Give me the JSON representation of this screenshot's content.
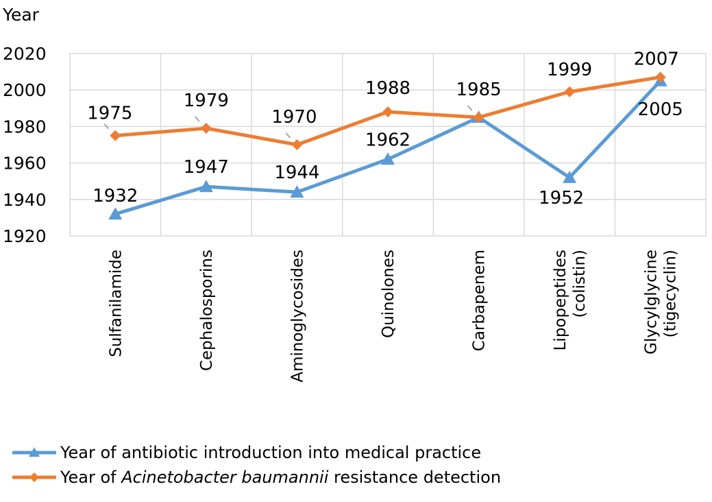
{
  "chart_data": {
    "type": "line",
    "ylabel": "Year",
    "ylim": [
      1920,
      2020
    ],
    "yticks": [
      "1920",
      "1940",
      "1960",
      "1980",
      "2000",
      "2020"
    ],
    "grid": true,
    "legend_position": "bottom",
    "categories": [
      [
        "Sulfanilamide"
      ],
      [
        "Cephalosporins"
      ],
      [
        "Aminoglycosides"
      ],
      [
        "Quinolones"
      ],
      [
        "Carbapenem"
      ],
      [
        "Lipopeptides",
        "(colistin)"
      ],
      [
        "Glycylglycine",
        "(tigecyclin)"
      ]
    ],
    "series": [
      {
        "name": "Year of antibiotic introduction into medical practice",
        "color": "#5B9BD5",
        "marker": "triangle",
        "values": [
          1932,
          1947,
          1944,
          1962,
          1985,
          1952,
          2005
        ],
        "labels": [
          "1932",
          "1947",
          "1944",
          "1962",
          "",
          "1952",
          "2005"
        ]
      },
      {
        "name_parts": [
          "Year of ",
          "Acinetobacter baumannii",
          " resistance detection"
        ],
        "color": "#ED7D31",
        "marker": "diamond",
        "values": [
          1975,
          1979,
          1970,
          1988,
          1985,
          1999,
          2007
        ],
        "labels": [
          "1975",
          "1979",
          "1970",
          "1988",
          "1985",
          "1999",
          "2007"
        ]
      }
    ]
  }
}
